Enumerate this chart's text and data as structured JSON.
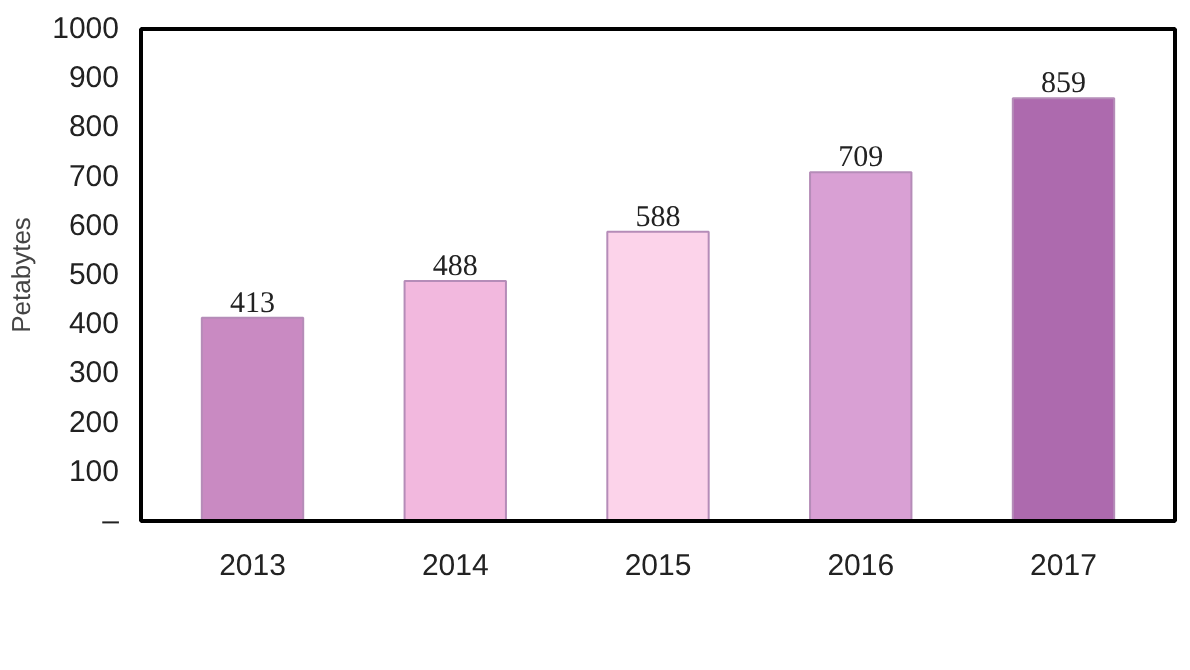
{
  "chart_data": {
    "type": "bar",
    "ylabel": "Petabytes",
    "categories": [
      "2013",
      "2014",
      "2015",
      "2016",
      "2017"
    ],
    "values": [
      413,
      488,
      588,
      709,
      859
    ],
    "colors": [
      "#c98ac2",
      "#f2b8de",
      "#fcd3ea",
      "#d9a0d4",
      "#ad6aae"
    ],
    "ylim": [
      0,
      1000
    ],
    "yticks": [
      {
        "value": 0,
        "label": "–"
      },
      100,
      200,
      300,
      400,
      500,
      600,
      700,
      800,
      900,
      1000
    ],
    "data_labels": true,
    "grid": false
  }
}
